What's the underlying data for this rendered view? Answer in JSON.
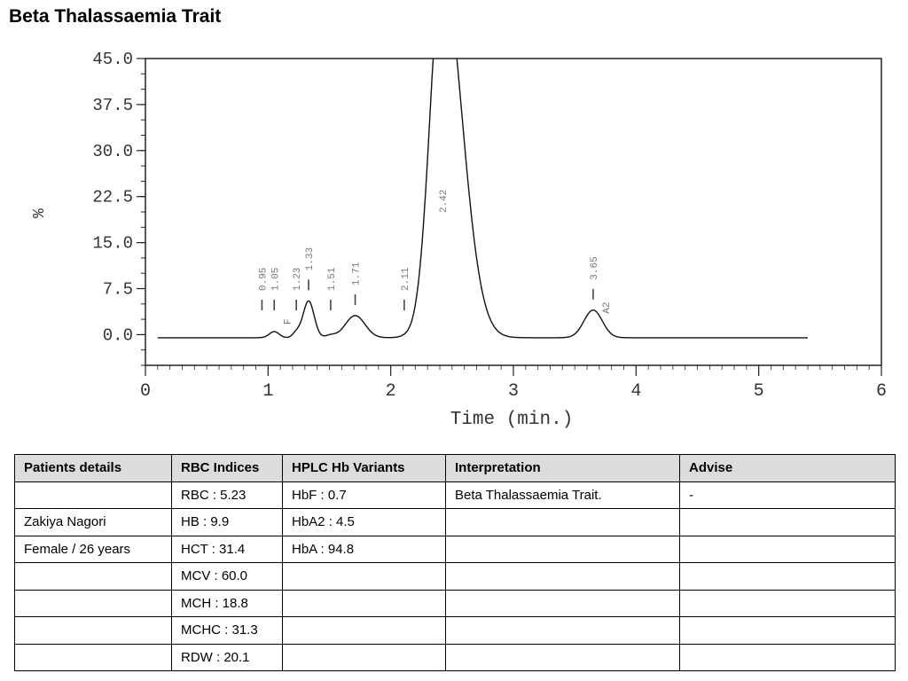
{
  "page": {
    "title": "Beta Thalassaemia Trait"
  },
  "chart_data": {
    "type": "line",
    "title": "",
    "xlabel": "Time (min.)",
    "ylabel": "%",
    "xlim": [
      0,
      6
    ],
    "ylim": [
      -5,
      45
    ],
    "x_ticks": [
      0,
      1,
      2,
      3,
      4,
      5,
      6
    ],
    "y_ticks": [
      0,
      7.5,
      15,
      22.5,
      30,
      37.5,
      45
    ],
    "y_tick_labels": [
      "0.0",
      "7.5",
      "15.0",
      "22.5",
      "30.0",
      "37.5",
      "45.0"
    ],
    "baseline": -0.5,
    "peaks": [
      {
        "label": "0.95",
        "rt": 0.95,
        "height": 0.0,
        "width": 0.03
      },
      {
        "label": "1.05",
        "rt": 1.05,
        "height": 1.0,
        "width": 0.04,
        "name": "F"
      },
      {
        "label": "1.23",
        "rt": 1.23,
        "height": 0.8,
        "width": 0.03
      },
      {
        "label": "1.33",
        "rt": 1.33,
        "height": 6.0,
        "width": 0.045
      },
      {
        "label": "1.51",
        "rt": 1.51,
        "height": 0.4,
        "width": 0.04
      },
      {
        "label": "1.71",
        "rt": 1.71,
        "height": 3.6,
        "width": 0.08
      },
      {
        "label": "2.11",
        "rt": 2.11,
        "height": 0.1,
        "width": 0.05
      },
      {
        "label": "2.42",
        "rt": 2.42,
        "height": 60.0,
        "width": 0.1
      },
      {
        "label": "3.65",
        "rt": 3.65,
        "height": 4.5,
        "width": 0.075,
        "name": "A2"
      }
    ]
  },
  "table": {
    "headers": [
      "Patients details",
      "RBC Indices",
      "HPLC Hb Variants",
      "Interpretation",
      "Advise"
    ],
    "rows": [
      [
        "",
        "RBC : 5.23",
        "HbF : 0.7",
        "Beta Thalassaemia Trait.",
        "-"
      ],
      [
        "Zakiya Nagori",
        "HB : 9.9",
        "HbA2 : 4.5",
        "",
        ""
      ],
      [
        "Female / 26 years",
        "HCT : 31.4",
        "HbA : 94.8",
        "",
        ""
      ],
      [
        "",
        "MCV : 60.0",
        "",
        "",
        ""
      ],
      [
        "",
        "MCH : 18.8",
        "",
        "",
        ""
      ],
      [
        "",
        "MCHC : 31.3",
        "",
        "",
        ""
      ],
      [
        "",
        "RDW : 20.1",
        "",
        "",
        ""
      ]
    ]
  }
}
